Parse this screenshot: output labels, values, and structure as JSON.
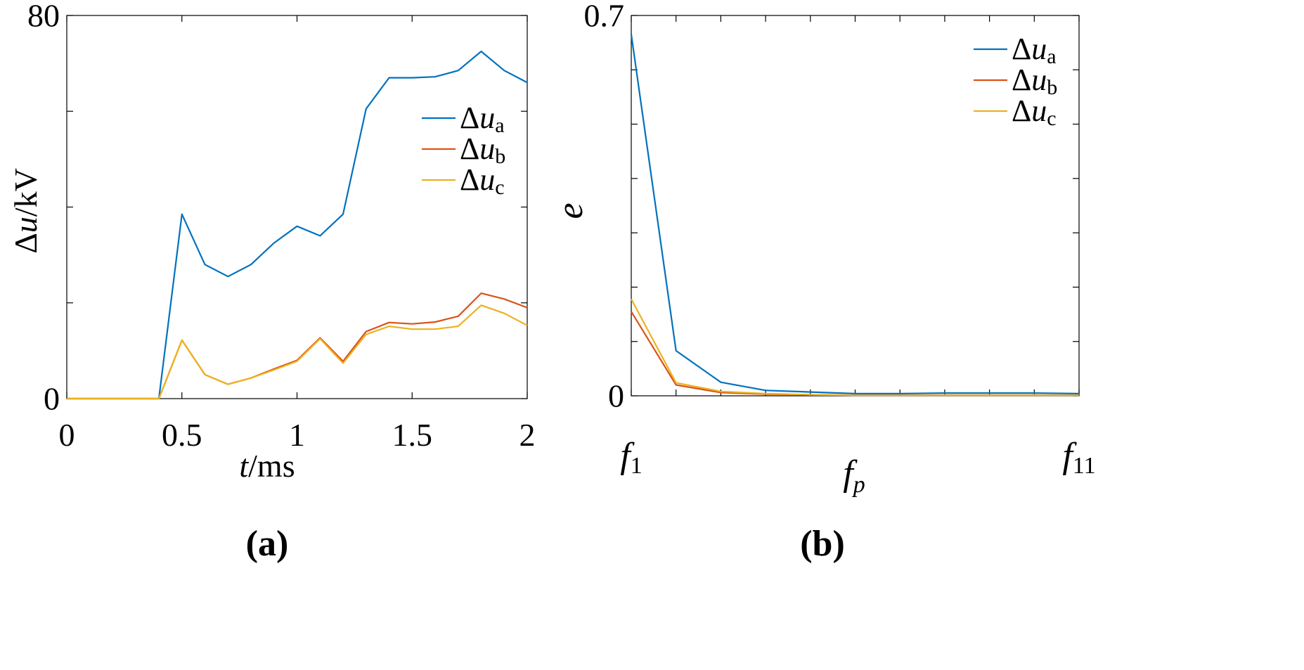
{
  "colors": {
    "series_a": "#0072BD",
    "series_b": "#D95319",
    "series_c": "#EDB120",
    "axis": "#000000"
  },
  "chart_data": [
    {
      "type": "line",
      "panel_label": "(a)",
      "xlabel": {
        "italic": "t",
        "rest": "/ms"
      },
      "ylabel": {
        "prefix": "Δ",
        "italic": "u",
        "rest": "/kV"
      },
      "xlim": [
        0,
        2
      ],
      "ylim": [
        0,
        80
      ],
      "xticks": [
        0,
        0.5,
        1,
        1.5,
        2
      ],
      "xtick_labels": [
        "0",
        "0.5",
        "1",
        "1.5",
        "2"
      ],
      "yticks": [
        0,
        20,
        40,
        60,
        80
      ],
      "ytick_labels": [
        "0",
        "",
        "",
        "",
        "80"
      ],
      "legend_position": "upper-right",
      "x": [
        0,
        0.1,
        0.2,
        0.3,
        0.4,
        0.5,
        0.6,
        0.7,
        0.8,
        0.9,
        1.0,
        1.1,
        1.2,
        1.3,
        1.4,
        1.5,
        1.6,
        1.7,
        1.8,
        1.9,
        2.0
      ],
      "series": [
        {
          "name": "Δua",
          "prefix": "Δ",
          "italic": "u",
          "sub": "a",
          "color_key": "series_a",
          "values": [
            0,
            0,
            0,
            0,
            0,
            38.5,
            28,
            25.5,
            28,
            32.5,
            36,
            34,
            38.5,
            60.5,
            67,
            67,
            67.2,
            68.5,
            72.5,
            68.5,
            66
          ]
        },
        {
          "name": "Δub",
          "prefix": "Δ",
          "italic": "u",
          "sub": "b",
          "color_key": "series_b",
          "values": [
            0,
            0,
            0,
            0,
            0,
            12.2,
            5,
            3,
            4.3,
            6.2,
            8,
            12.7,
            7.8,
            14,
            15.9,
            15.6,
            16,
            17.2,
            22,
            20.8,
            19
          ]
        },
        {
          "name": "Δuc",
          "prefix": "Δ",
          "italic": "u",
          "sub": "c",
          "color_key": "series_c",
          "values": [
            0,
            0,
            0,
            0,
            0,
            12.2,
            5,
            3,
            4.3,
            6,
            7.8,
            12.5,
            7.4,
            13.4,
            15.1,
            14.5,
            14.5,
            15.1,
            19.5,
            17.8,
            15.3
          ]
        }
      ]
    },
    {
      "type": "line",
      "panel_label": "(b)",
      "xlabel": {
        "italic": "f",
        "sub": "p"
      },
      "ylabel": {
        "italic": "e"
      },
      "xlim": [
        1,
        11
      ],
      "ylim": [
        0,
        0.7
      ],
      "xtick_labels": [
        {
          "pos": 1,
          "italic": "f",
          "sub": "1"
        },
        {
          "pos": 11,
          "italic": "f",
          "sub": "11"
        }
      ],
      "yticks": [
        0,
        0.1,
        0.2,
        0.3,
        0.4,
        0.5,
        0.6,
        0.7
      ],
      "ytick_labels": [
        "0",
        "",
        "",
        "",
        "",
        "",
        "",
        "0.7"
      ],
      "legend_position": "upper-right",
      "x": [
        1,
        2,
        3,
        4,
        5,
        6,
        7,
        8,
        9,
        10,
        11
      ],
      "series": [
        {
          "name": "Δua",
          "prefix": "Δ",
          "italic": "u",
          "sub": "a",
          "color_key": "series_a",
          "values": [
            0.665,
            0.083,
            0.025,
            0.01,
            0.007,
            0.004,
            0.004,
            0.005,
            0.005,
            0.005,
            0.004
          ]
        },
        {
          "name": "Δub",
          "prefix": "Δ",
          "italic": "u",
          "sub": "b",
          "color_key": "series_b",
          "values": [
            0.155,
            0.02,
            0.006,
            0.003,
            0.002,
            0.001,
            0.001,
            0.001,
            0.001,
            0.001,
            0.001
          ]
        },
        {
          "name": "Δuc",
          "prefix": "Δ",
          "italic": "u",
          "sub": "c",
          "color_key": "series_c",
          "values": [
            0.178,
            0.024,
            0.008,
            0.004,
            0.002,
            0.001,
            0.001,
            0.001,
            0.001,
            0.001,
            0.001
          ]
        }
      ]
    }
  ]
}
